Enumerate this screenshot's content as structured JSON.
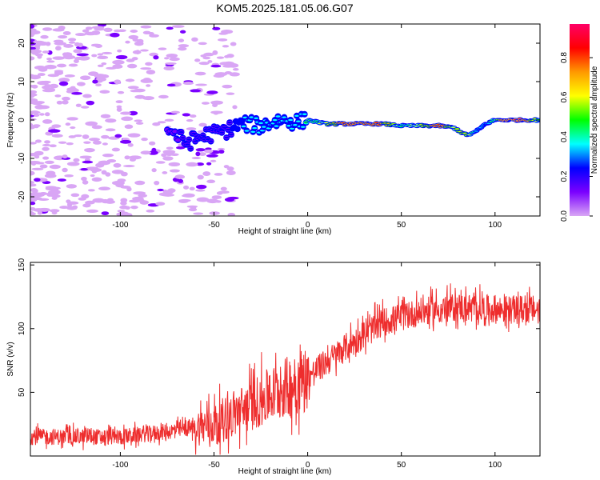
{
  "title": "KOM5.2025.181.05.06.G07",
  "colors": {
    "snr_line": "#ee2d2d",
    "colormap": [
      "#ffffff",
      "#d9a6f5",
      "#7a00ff",
      "#0000ff",
      "#00ffff",
      "#00ff00",
      "#ffff00",
      "#ff9900",
      "#ff0000",
      "#ff0066"
    ]
  },
  "chart_data": [
    {
      "type": "heatmap",
      "title": "KOM5.2025.181.05.06.G07",
      "xlabel": "Height of straight line (km)",
      "ylabel": "Frequency (Hz)",
      "xlim": [
        -148,
        124
      ],
      "ylim": [
        -25,
        25
      ],
      "x_ticks": [
        -100,
        -50,
        0,
        50,
        100
      ],
      "y_ticks": [
        -20,
        -10,
        0,
        10,
        20
      ],
      "colorbar": {
        "label": "Normalized spectral amplitude",
        "range": [
          0,
          0.97
        ],
        "ticks": [
          0.0,
          0.2,
          0.4,
          0.6,
          0.8
        ]
      },
      "ridge": {
        "description_points": [
          {
            "x": -75,
            "freq": -2,
            "amp": 0.15
          },
          {
            "x": -65,
            "freq": -6,
            "amp": 0.2
          },
          {
            "x": -55,
            "freq": -4,
            "amp": 0.2
          },
          {
            "x": -45,
            "freq": -3,
            "amp": 0.22
          },
          {
            "x": -35,
            "freq": -1,
            "amp": 0.3
          },
          {
            "x": -25,
            "freq": -1.5,
            "amp": 0.35
          },
          {
            "x": -15,
            "freq": 0,
            "amp": 0.35
          },
          {
            "x": -5,
            "freq": -0.5,
            "amp": 0.35
          },
          {
            "x": 0,
            "freq": 0,
            "amp": 0.45
          },
          {
            "x": 10,
            "freq": -1,
            "amp": 0.6
          },
          {
            "x": 20,
            "freq": -1,
            "amp": 0.9
          },
          {
            "x": 30,
            "freq": -1,
            "amp": 0.9
          },
          {
            "x": 40,
            "freq": -1,
            "amp": 0.8
          },
          {
            "x": 50,
            "freq": -1.5,
            "amp": 0.5
          },
          {
            "x": 60,
            "freq": -1.5,
            "amp": 0.6
          },
          {
            "x": 70,
            "freq": -1.5,
            "amp": 0.9
          },
          {
            "x": 78,
            "freq": -2,
            "amp": 0.6
          },
          {
            "x": 85,
            "freq": -4,
            "amp": 0.65
          },
          {
            "x": 90,
            "freq": -3,
            "amp": 0.4
          },
          {
            "x": 95,
            "freq": -1,
            "amp": 0.35
          },
          {
            "x": 100,
            "freq": 0,
            "amp": 0.5
          },
          {
            "x": 105,
            "freq": 0,
            "amp": 0.95
          },
          {
            "x": 115,
            "freq": 0,
            "amp": 0.95
          },
          {
            "x": 124,
            "freq": 0,
            "amp": 0.5
          }
        ]
      }
    },
    {
      "type": "line",
      "xlabel": "Height of straight line (km)",
      "ylabel": "SNR (v/v)",
      "xlim": [
        -148,
        124
      ],
      "ylim": [
        0,
        152
      ],
      "x_ticks": [
        -100,
        -50,
        0,
        50,
        100
      ],
      "y_ticks": [
        50,
        100,
        150
      ],
      "series": [
        {
          "trend_points": [
            {
              "x": -148,
              "y": 15
            },
            {
              "x": -100,
              "y": 15
            },
            {
              "x": -70,
              "y": 20
            },
            {
              "x": -50,
              "y": 25
            },
            {
              "x": -30,
              "y": 40
            },
            {
              "x": -10,
              "y": 55
            },
            {
              "x": 0,
              "y": 62
            },
            {
              "x": 20,
              "y": 85
            },
            {
              "x": 40,
              "y": 105
            },
            {
              "x": 60,
              "y": 113
            },
            {
              "x": 80,
              "y": 117
            },
            {
              "x": 100,
              "y": 115
            },
            {
              "x": 124,
              "y": 115
            }
          ]
        }
      ]
    }
  ]
}
